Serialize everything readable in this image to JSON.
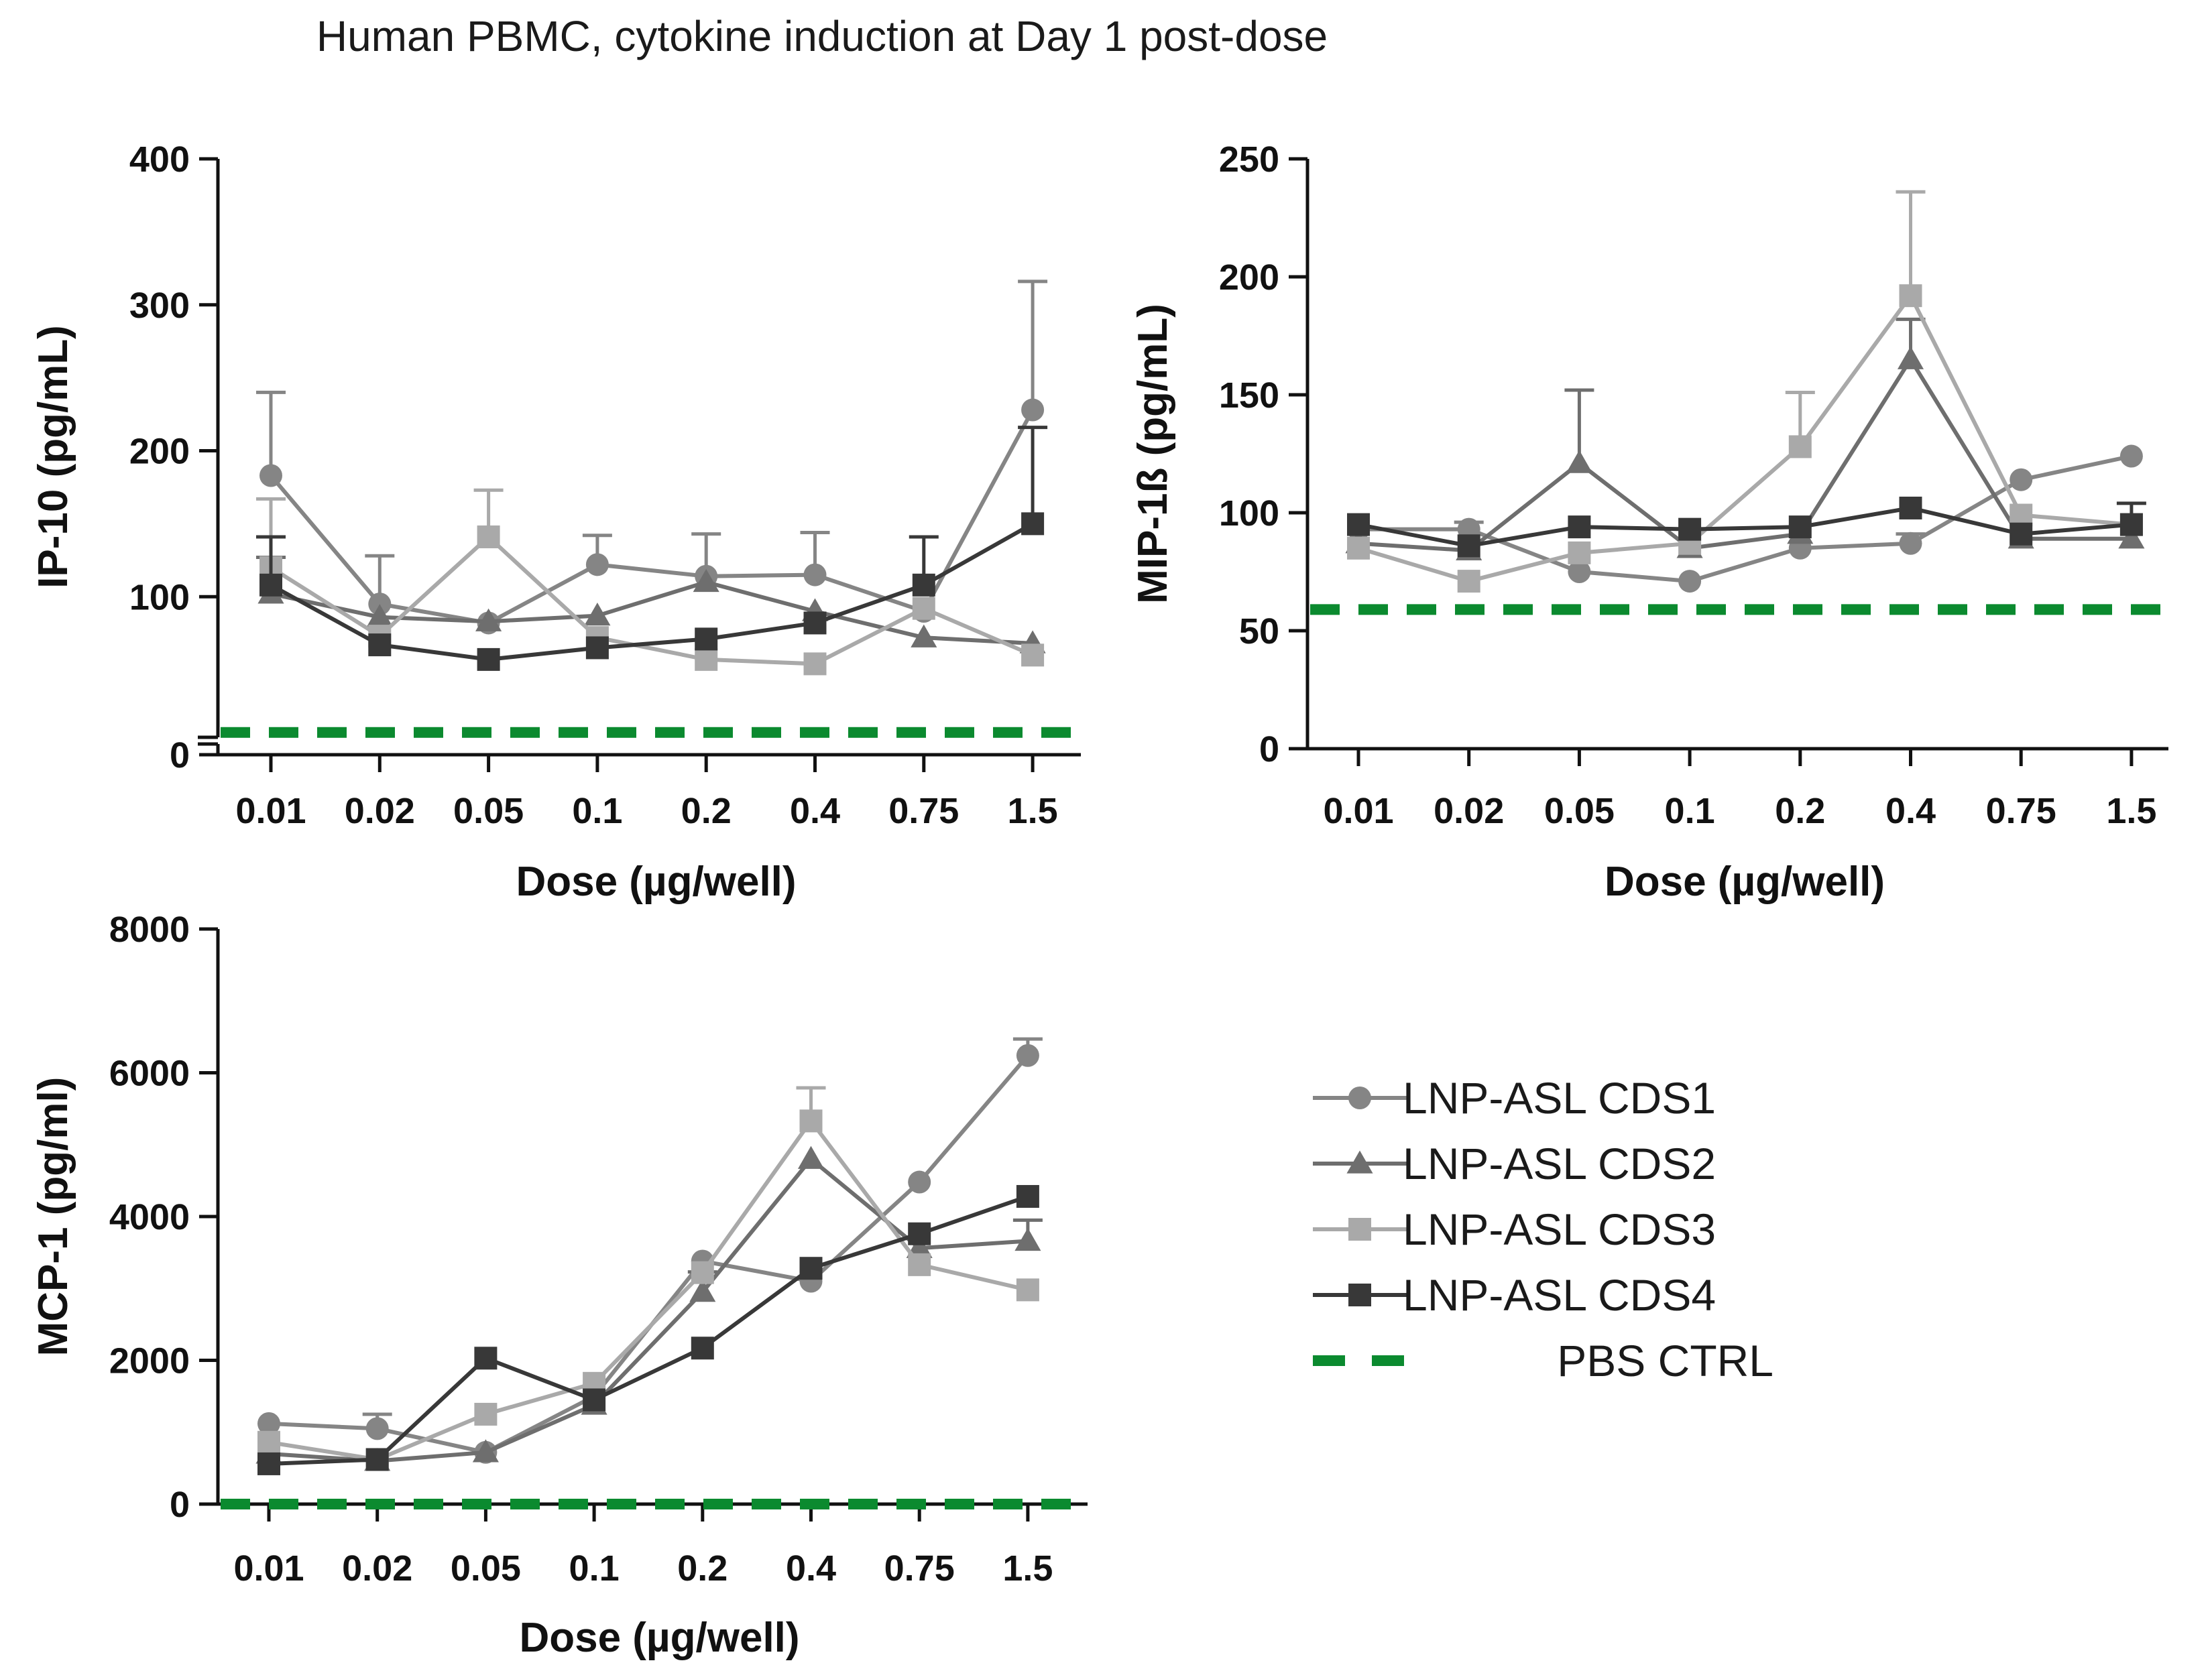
{
  "figure": {
    "title": "Human PBMC, cytokine induction at Day 1 post-dose"
  },
  "legend": {
    "entries": [
      {
        "label": "LNP-ASL CDS1",
        "marker": "circle",
        "color": "#858585",
        "style": "solid"
      },
      {
        "label": "LNP-ASL CDS2",
        "marker": "triangle",
        "color": "#6e6e6e",
        "style": "solid"
      },
      {
        "label": "LNP-ASL CDS3",
        "marker": "square",
        "color": "#a9a9a9",
        "style": "solid"
      },
      {
        "label": "LNP-ASL CDS4",
        "marker": "square",
        "color": "#383838",
        "style": "solid"
      },
      {
        "label": "PBS CTRL",
        "marker": "none",
        "color": "#0b8a2f",
        "style": "dashed"
      }
    ]
  },
  "chart_data": [
    {
      "id": "ip10",
      "type": "line",
      "title": "",
      "xlabel": "Dose (µg/well)",
      "ylabel": "IP-10 (pg/mL)",
      "categories": [
        "0.01",
        "0.02",
        "0.05",
        "0.1",
        "0.2",
        "0.4",
        "0.75",
        "1.5"
      ],
      "ylim": [
        0,
        400
      ],
      "yticks": [
        0,
        100,
        200,
        300,
        400
      ],
      "axis_break_near_zero": true,
      "series": [
        {
          "name": "LNP-ASL CDS1",
          "values": [
            183,
            95,
            82,
            122,
            114,
            115,
            90,
            228
          ],
          "errors": [
            57,
            33,
            0,
            20,
            29,
            29,
            0,
            88
          ]
        },
        {
          "name": "LNP-ASL CDS2",
          "values": [
            102,
            86,
            83,
            87,
            110,
            90,
            72,
            68
          ],
          "errors": [
            25,
            0,
            0,
            0,
            0,
            0,
            0,
            0
          ]
        },
        {
          "name": "LNP-ASL CDS3",
          "values": [
            120,
            73,
            141,
            72,
            57,
            54,
            92,
            60
          ],
          "errors": [
            47,
            0,
            32,
            0,
            0,
            0,
            0,
            0
          ]
        },
        {
          "name": "LNP-ASL CDS4",
          "values": [
            108,
            67,
            57,
            65,
            71,
            82,
            108,
            150
          ],
          "errors": [
            33,
            0,
            0,
            0,
            0,
            0,
            33,
            66
          ]
        }
      ],
      "reference_line": {
        "name": "PBS CTRL",
        "value": 7
      }
    },
    {
      "id": "mip1b",
      "type": "line",
      "title": "",
      "xlabel": "Dose (µg/well)",
      "ylabel": "MIP-1ß (pg/mL)",
      "categories": [
        "0.01",
        "0.02",
        "0.05",
        "0.1",
        "0.2",
        "0.4",
        "0.75",
        "1.5"
      ],
      "ylim": [
        0,
        250
      ],
      "yticks": [
        0,
        50,
        100,
        150,
        200,
        250
      ],
      "axis_break_near_zero": false,
      "series": [
        {
          "name": "LNP-ASL CDS1",
          "values": [
            93,
            93,
            75,
            71,
            85,
            87,
            114,
            124
          ],
          "errors": [
            0,
            3,
            0,
            0,
            0,
            4,
            0,
            0
          ]
        },
        {
          "name": "LNP-ASL CDS2",
          "values": [
            87,
            84,
            121,
            85,
            91,
            165,
            89,
            89
          ],
          "errors": [
            0,
            0,
            31,
            0,
            0,
            17,
            0,
            0
          ]
        },
        {
          "name": "LNP-ASL CDS3",
          "values": [
            85,
            71,
            83,
            87,
            128,
            192,
            99,
            95
          ],
          "errors": [
            0,
            0,
            0,
            0,
            23,
            44,
            0,
            0
          ]
        },
        {
          "name": "LNP-ASL CDS4",
          "values": [
            95,
            86,
            94,
            93,
            94,
            102,
            91,
            95
          ],
          "errors": [
            0,
            0,
            0,
            0,
            0,
            0,
            0,
            9
          ]
        }
      ],
      "reference_line": {
        "name": "PBS CTRL",
        "value": 59
      }
    },
    {
      "id": "mcp1",
      "type": "line",
      "title": "",
      "xlabel": "Dose (µg/well)",
      "ylabel": "MCP-1 (pg/ml)",
      "categories": [
        "0.01",
        "0.02",
        "0.05",
        "0.1",
        "0.2",
        "0.4",
        "0.75",
        "1.5"
      ],
      "ylim": [
        0,
        8000
      ],
      "yticks": [
        0,
        2000,
        4000,
        6000,
        8000
      ],
      "axis_break_near_zero": false,
      "series": [
        {
          "name": "LNP-ASL CDS1",
          "values": [
            1120,
            1050,
            720,
            1500,
            3380,
            3100,
            4480,
            6240
          ],
          "errors": [
            0,
            200,
            0,
            0,
            0,
            0,
            0,
            230
          ]
        },
        {
          "name": "LNP-ASL CDS2",
          "values": [
            700,
            600,
            720,
            1380,
            2950,
            4800,
            3560,
            3660
          ],
          "errors": [
            0,
            0,
            0,
            0,
            280,
            0,
            0,
            290
          ]
        },
        {
          "name": "LNP-ASL CDS3",
          "values": [
            860,
            620,
            1250,
            1680,
            3220,
            5330,
            3330,
            2980
          ],
          "errors": [
            0,
            0,
            0,
            0,
            0,
            460,
            0,
            0
          ]
        },
        {
          "name": "LNP-ASL CDS4",
          "values": [
            560,
            620,
            2030,
            1450,
            2170,
            3280,
            3760,
            4280
          ],
          "errors": [
            0,
            0,
            0,
            0,
            0,
            0,
            0,
            0
          ]
        }
      ],
      "reference_line": {
        "name": "PBS CTRL",
        "value": 0
      }
    }
  ]
}
